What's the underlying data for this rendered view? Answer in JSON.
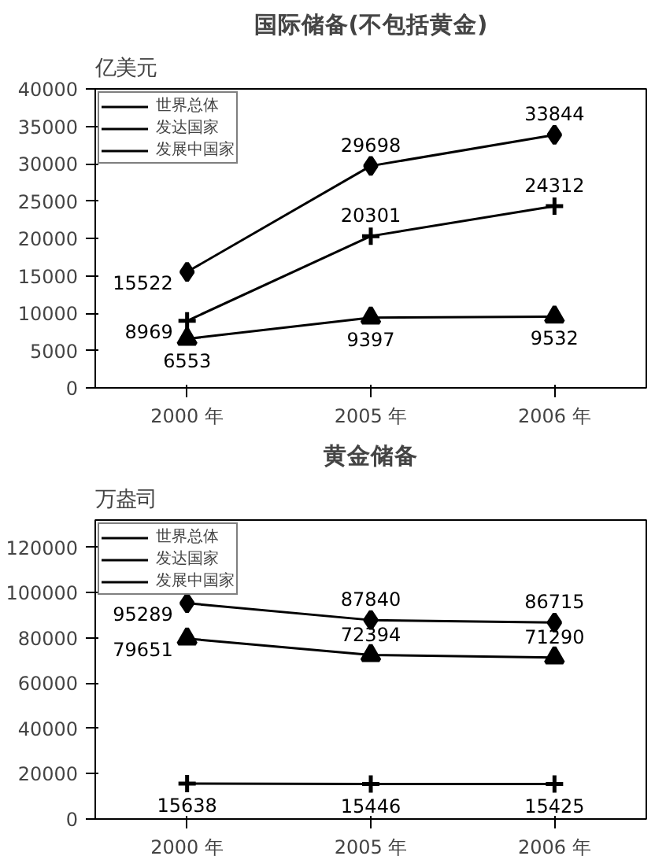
{
  "chart_data": [
    {
      "type": "line",
      "title": "国际储备(不包括黄金)",
      "ylabel": "亿美元",
      "categories": [
        "2000 年",
        "2005 年",
        "2006 年"
      ],
      "ylim": [
        0,
        40000
      ],
      "yticks": [
        0,
        5000,
        10000,
        15000,
        20000,
        25000,
        30000,
        35000,
        40000
      ],
      "legend": "top left",
      "grid": false,
      "data_labels": true,
      "series": [
        {
          "name": "世界总体",
          "color": "#000000",
          "marker": "diamond",
          "values": [
            15522,
            29698,
            33844
          ]
        },
        {
          "name": "发达国家",
          "color": "#000000",
          "marker": "triangle",
          "values": [
            6553,
            9397,
            9532
          ]
        },
        {
          "name": "发展中国家",
          "color": "#000000",
          "marker": "cross",
          "values": [
            8969,
            20301,
            24312
          ]
        }
      ]
    },
    {
      "type": "line",
      "title": "黄金储备",
      "ylabel": "万盎司",
      "categories": [
        "2000 年",
        "2005 年",
        "2006 年"
      ],
      "ylim": [
        0,
        132000
      ],
      "yticks": [
        0,
        20000,
        40000,
        60000,
        80000,
        100000,
        120000
      ],
      "legend": "top left",
      "grid": false,
      "data_labels": true,
      "series": [
        {
          "name": "世界总体",
          "color": "#000000",
          "marker": "diamond",
          "values": [
            95289,
            87840,
            86715
          ]
        },
        {
          "name": "发达国家",
          "color": "#000000",
          "marker": "triangle",
          "values": [
            79651,
            72394,
            71290
          ]
        },
        {
          "name": "发展中国家",
          "color": "#000000",
          "marker": "cross",
          "values": [
            15638,
            15446,
            15425
          ]
        }
      ]
    }
  ]
}
